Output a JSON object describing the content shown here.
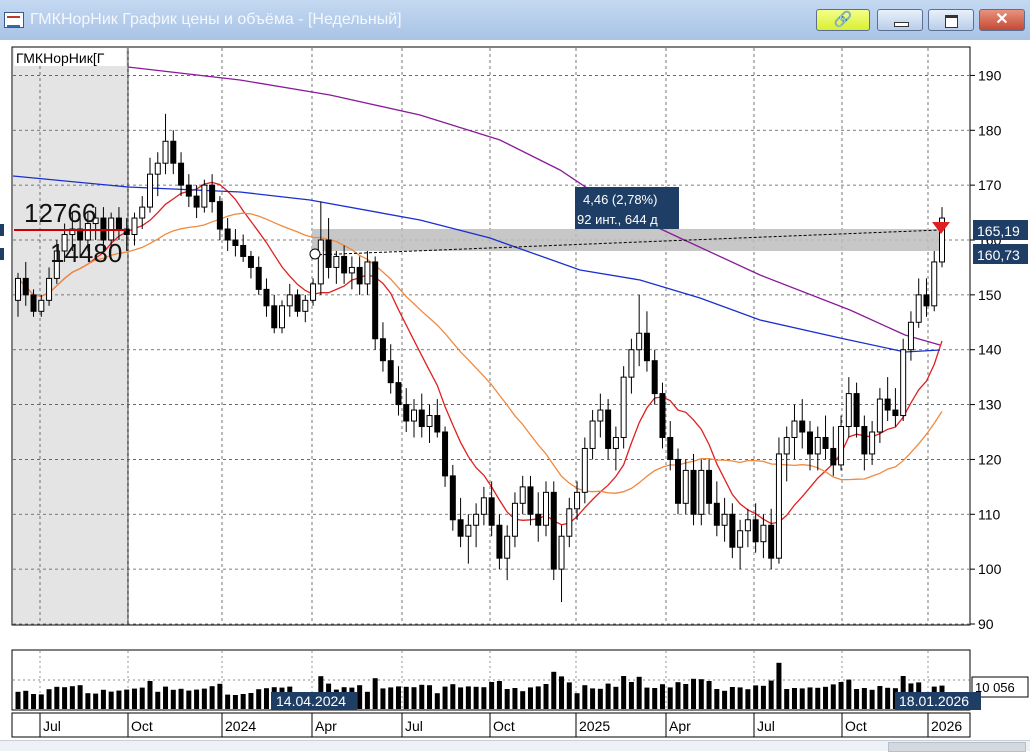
{
  "window": {
    "title": "ГМКНорНик График цены и объёма - [Недельный]",
    "link_glyph": "🔗",
    "close_glyph": "✕",
    "icon": "chart-window-icon"
  },
  "chart": {
    "security_label": "ГМКНорНик[Г",
    "overlay_number_1": "12766",
    "overlay_number_2": "14480",
    "measure_tooltip_line1": "4,46 (2,78%)",
    "measure_tooltip_line2": "92 инт., 644 д",
    "price_tag_high": "165,19",
    "price_tag_low": "160,73",
    "volume_tag": "10 056",
    "date_tag_left": "14.04.2024",
    "date_tag_right": "18.01.2026",
    "colors": {
      "up": "#ffffff",
      "down": "#000000",
      "ma_red": "#e02020",
      "ma_orange": "#f08a40",
      "ma_blue": "#1a2fd0",
      "ma_purple": "#8a1a9a",
      "tag_bg": "#1f3e66"
    }
  },
  "chart_data": {
    "type": "candlestick",
    "y_axis": {
      "min": 90,
      "max": 195,
      "ticks": [
        90,
        100,
        110,
        120,
        130,
        140,
        150,
        160,
        170,
        180,
        190
      ]
    },
    "x_labels": [
      "Jul",
      "Oct",
      "2024",
      "Apr",
      "Jul",
      "Oct",
      "2025",
      "Apr",
      "Jul",
      "Oct",
      "2026"
    ],
    "grid": true,
    "candles": [
      [
        149,
        154,
        146,
        153
      ],
      [
        153,
        156,
        148,
        150
      ],
      [
        150,
        151,
        146,
        147
      ],
      [
        147,
        150,
        146,
        149
      ],
      [
        149,
        155,
        148,
        153
      ],
      [
        153,
        160,
        152,
        158
      ],
      [
        158,
        163,
        156,
        161
      ],
      [
        161,
        165,
        158,
        162
      ],
      [
        162,
        164,
        157,
        160
      ],
      [
        160,
        165,
        158,
        163
      ],
      [
        163,
        166,
        160,
        164
      ],
      [
        164,
        166,
        158,
        160
      ],
      [
        160,
        165,
        159,
        164
      ],
      [
        164,
        166,
        160,
        162
      ],
      [
        162,
        164,
        158,
        161
      ],
      [
        161,
        165,
        159,
        164
      ],
      [
        164,
        168,
        162,
        166
      ],
      [
        166,
        175,
        165,
        172
      ],
      [
        172,
        176,
        168,
        174
      ],
      [
        174,
        183,
        172,
        178
      ],
      [
        178,
        180,
        172,
        174
      ],
      [
        174,
        176,
        168,
        170
      ],
      [
        170,
        172,
        166,
        168
      ],
      [
        168,
        170,
        164,
        166
      ],
      [
        166,
        171,
        165,
        170
      ],
      [
        170,
        172,
        165,
        167
      ],
      [
        167,
        168,
        160,
        162
      ],
      [
        162,
        164,
        158,
        160
      ],
      [
        160,
        162,
        157,
        159
      ],
      [
        159,
        161,
        156,
        157
      ],
      [
        157,
        158,
        153,
        155
      ],
      [
        155,
        157,
        150,
        151
      ],
      [
        151,
        153,
        146,
        148
      ],
      [
        148,
        150,
        143,
        144
      ],
      [
        144,
        149,
        143,
        148
      ],
      [
        148,
        152,
        146,
        150
      ],
      [
        150,
        151,
        146,
        147
      ],
      [
        147,
        150,
        145,
        149
      ],
      [
        149,
        153,
        148,
        152
      ],
      [
        152,
        167,
        150,
        160
      ],
      [
        160,
        164,
        153,
        155
      ],
      [
        155,
        158,
        152,
        157
      ],
      [
        157,
        159,
        152,
        154
      ],
      [
        154,
        157,
        151,
        155
      ],
      [
        155,
        157,
        150,
        152
      ],
      [
        152,
        158,
        150,
        156
      ],
      [
        156,
        157,
        140,
        142
      ],
      [
        142,
        145,
        136,
        138
      ],
      [
        138,
        141,
        132,
        134
      ],
      [
        134,
        137,
        128,
        130
      ],
      [
        130,
        133,
        125,
        127
      ],
      [
        127,
        131,
        124,
        129
      ],
      [
        129,
        132,
        124,
        126
      ],
      [
        126,
        130,
        123,
        128
      ],
      [
        128,
        131,
        124,
        125
      ],
      [
        125,
        126,
        115,
        117
      ],
      [
        117,
        119,
        107,
        109
      ],
      [
        109,
        113,
        104,
        106
      ],
      [
        106,
        110,
        101,
        108
      ],
      [
        108,
        112,
        104,
        110
      ],
      [
        110,
        115,
        108,
        113
      ],
      [
        113,
        116,
        106,
        108
      ],
      [
        108,
        110,
        100,
        102
      ],
      [
        102,
        108,
        98,
        106
      ],
      [
        106,
        114,
        104,
        112
      ],
      [
        112,
        117,
        110,
        115
      ],
      [
        115,
        117,
        108,
        110
      ],
      [
        110,
        114,
        105,
        108
      ],
      [
        108,
        116,
        106,
        114
      ],
      [
        114,
        116,
        98,
        100
      ],
      [
        100,
        108,
        94,
        106
      ],
      [
        106,
        113,
        104,
        111
      ],
      [
        111,
        116,
        109,
        114
      ],
      [
        114,
        124,
        112,
        122
      ],
      [
        122,
        129,
        120,
        127
      ],
      [
        127,
        132,
        124,
        129
      ],
      [
        129,
        131,
        120,
        122
      ],
      [
        122,
        126,
        118,
        124
      ],
      [
        124,
        137,
        122,
        135
      ],
      [
        135,
        142,
        132,
        140
      ],
      [
        140,
        150,
        137,
        143
      ],
      [
        143,
        147,
        136,
        138
      ],
      [
        138,
        140,
        130,
        132
      ],
      [
        132,
        134,
        122,
        124
      ],
      [
        124,
        127,
        118,
        120
      ],
      [
        120,
        122,
        110,
        112
      ],
      [
        112,
        120,
        110,
        118
      ],
      [
        118,
        121,
        108,
        110
      ],
      [
        110,
        120,
        108,
        118
      ],
      [
        118,
        120,
        110,
        112
      ],
      [
        112,
        116,
        106,
        108
      ],
      [
        108,
        113,
        105,
        110
      ],
      [
        110,
        112,
        102,
        104
      ],
      [
        104,
        109,
        100,
        107
      ],
      [
        107,
        111,
        104,
        109
      ],
      [
        109,
        112,
        103,
        105
      ],
      [
        105,
        110,
        102,
        108
      ],
      [
        108,
        111,
        100,
        102
      ],
      [
        102,
        124,
        101,
        121
      ],
      [
        121,
        126,
        116,
        124
      ],
      [
        124,
        130,
        120,
        127
      ],
      [
        127,
        131,
        122,
        125
      ],
      [
        125,
        127,
        118,
        121
      ],
      [
        121,
        126,
        118,
        124
      ],
      [
        124,
        128,
        120,
        122
      ],
      [
        122,
        126,
        117,
        119
      ],
      [
        119,
        128,
        118,
        126
      ],
      [
        126,
        135,
        124,
        132
      ],
      [
        132,
        134,
        124,
        126
      ],
      [
        126,
        128,
        118,
        121
      ],
      [
        121,
        127,
        119,
        125
      ],
      [
        125,
        133,
        123,
        131
      ],
      [
        131,
        135,
        127,
        129
      ],
      [
        129,
        133,
        126,
        128
      ],
      [
        128,
        142,
        127,
        140
      ],
      [
        140,
        147,
        138,
        145
      ],
      [
        145,
        153,
        144,
        150
      ],
      [
        150,
        153,
        146,
        148
      ],
      [
        148,
        158,
        147,
        156
      ],
      [
        156,
        166,
        155,
        164
      ]
    ],
    "volume": {
      "ref_value": "10 056"
    }
  }
}
